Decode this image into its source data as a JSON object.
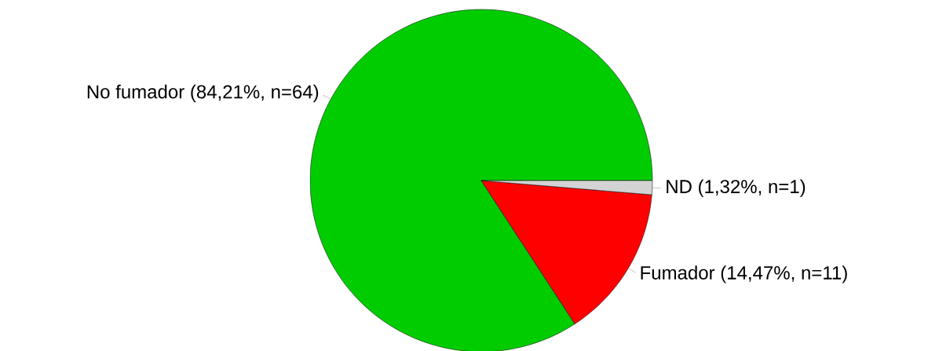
{
  "chart_data": {
    "type": "pie",
    "categories": [
      "No fumador (84,21%, n=64)",
      "Fumador (14,47%, n=11)",
      "ND (1,32%, n=1)"
    ],
    "values": [
      84.21,
      14.47,
      1.32
    ],
    "colors": [
      "#00cc00",
      "#ff0000",
      "#d3d3d3"
    ]
  }
}
